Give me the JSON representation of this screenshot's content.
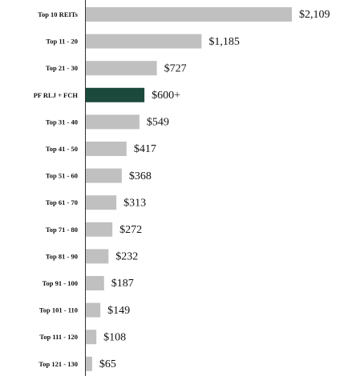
{
  "chart_data": {
    "type": "bar",
    "categories": [
      "Top 10 REITs",
      "Top 11 - 20",
      "Top 21 - 30",
      "PF RLJ + FCH",
      "Top 31 - 40",
      "Top 41 - 50",
      "Top 51 - 60",
      "Top 61 - 70",
      "Top 71 - 80",
      "Top 81 - 90",
      "Top 91 - 100",
      "Top 101 - 110",
      "Top 111 - 120",
      "Top 121 - 130"
    ],
    "values": [
      2109,
      1185,
      727,
      600,
      549,
      417,
      368,
      313,
      272,
      232,
      187,
      149,
      108,
      65
    ],
    "value_labels": [
      "$2,109",
      "$1,185",
      "$727",
      "$600+",
      "$549",
      "$417",
      "$368",
      "$313",
      "$272",
      "$232",
      "$187",
      "$149",
      "$108",
      "$65"
    ],
    "colors": [
      "#c0c0c0",
      "#c0c0c0",
      "#c0c0c0",
      "#1b4a3c",
      "#c0c0c0",
      "#c0c0c0",
      "#c0c0c0",
      "#c0c0c0",
      "#c0c0c0",
      "#c0c0c0",
      "#c0c0c0",
      "#c0c0c0",
      "#c0c0c0",
      "#c0c0c0"
    ]
  }
}
